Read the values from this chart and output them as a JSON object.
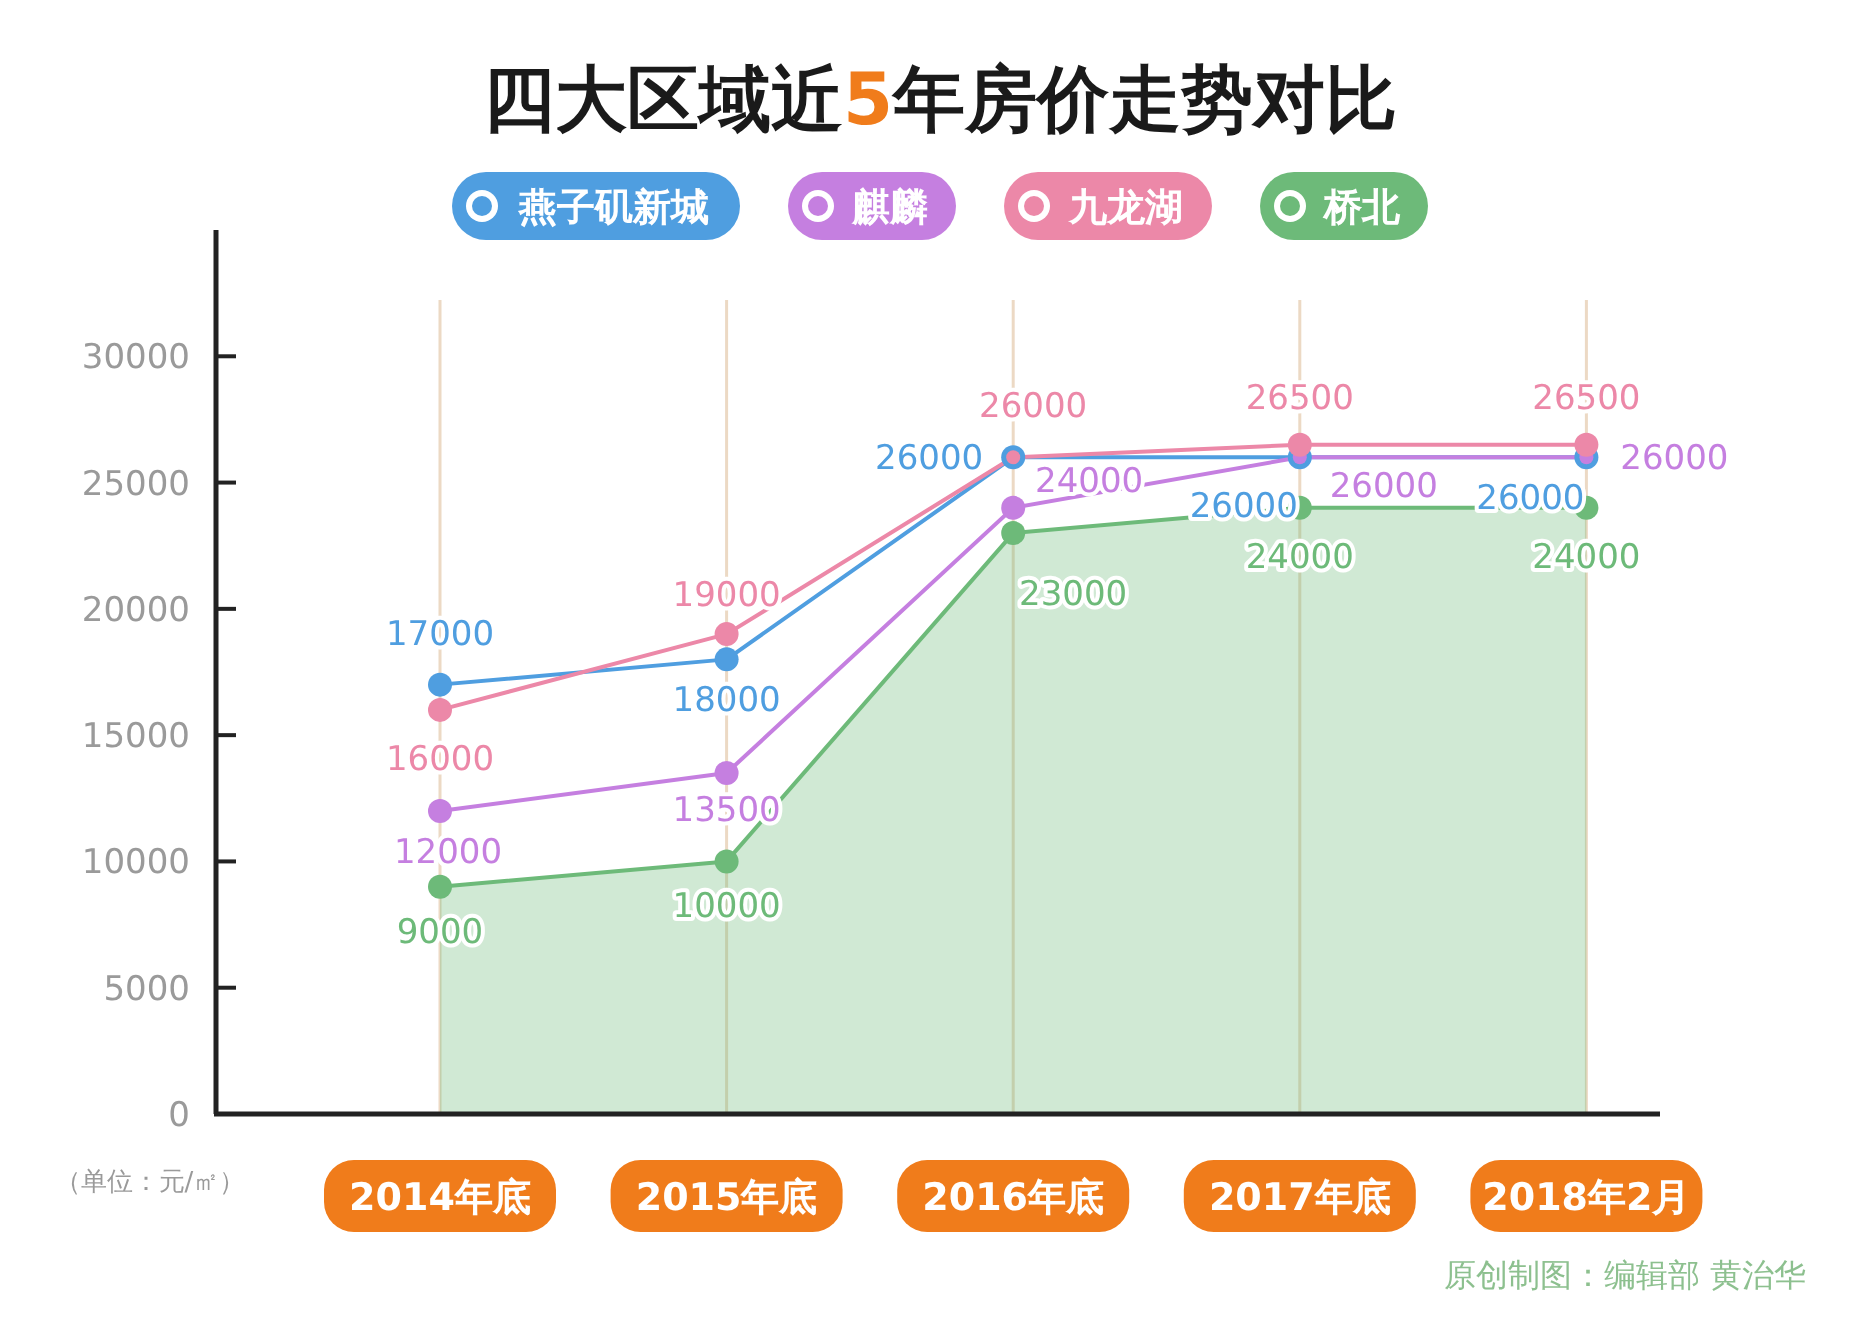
{
  "chart_data": {
    "type": "line",
    "title": "四大区域近5年房价走势对比",
    "ylabel": "（单位：元/㎡）",
    "categories": [
      "2014年底",
      "2015年底",
      "2016年底",
      "2017年底",
      "2018年2月"
    ],
    "series": [
      {
        "name": "燕子矶新城",
        "color": "#4f9ee0",
        "values": [
          17000,
          18000,
          26000,
          26000,
          26000
        ]
      },
      {
        "name": "麒麟",
        "color": "#c57fe0",
        "values": [
          12000,
          13500,
          24000,
          26000,
          26000
        ]
      },
      {
        "name": "九龙湖",
        "color": "#ec88a8",
        "values": [
          16000,
          19000,
          26000,
          26500,
          26500
        ]
      },
      {
        "name": "桥北",
        "type": "area",
        "color": "#6dba79",
        "values": [
          9000,
          10000,
          23000,
          24000,
          24000
        ]
      }
    ],
    "ylim": [
      0,
      35000
    ],
    "yticks": [
      0,
      5000,
      10000,
      15000,
      20000,
      25000,
      30000
    ],
    "grid": "x",
    "legend": "top",
    "marker": "circle",
    "data_labels": true,
    "annotations": [
      "原创制图：编辑部 黄治华"
    ]
  }
}
